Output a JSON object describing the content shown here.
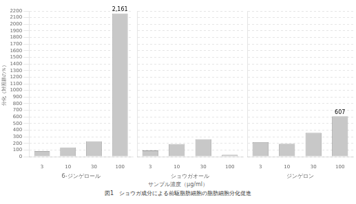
{
  "chart_data": [
    {
      "type": "bar",
      "xlabel": "6-ジンゲロール",
      "ylabel": "分化（対照群の％）",
      "categories": [
        "3",
        "10",
        "30",
        "100"
      ],
      "values": [
        80,
        138,
        232,
        2161
      ],
      "color": "#c8c8c8",
      "annotation": "2,161",
      "ylim": [
        0,
        2200
      ],
      "yticks": [
        0,
        100,
        200,
        300,
        400,
        500,
        600,
        700,
        800,
        900,
        1000,
        1100,
        1200,
        1300,
        1400,
        1500,
        1600,
        1700,
        1800,
        1900,
        2000,
        2100,
        2200
      ],
      "grid": true
    },
    {
      "type": "bar",
      "xlabel": "ショウガオール",
      "categories": [
        "3",
        "10",
        "30",
        "100"
      ],
      "values": [
        93,
        190,
        262,
        25
      ],
      "color": "#c8c8c8",
      "ylim": [
        0,
        2200
      ],
      "yticks": [
        0,
        100,
        200,
        300,
        400,
        500,
        600,
        700,
        800,
        900,
        1000,
        1100,
        1200,
        1300,
        1400,
        1500,
        1600,
        1700,
        1800,
        1900,
        2000,
        2100,
        2200
      ],
      "grid": true,
      "tick_labels": "x"
    },
    {
      "type": "bar",
      "xlabel": "ジンゲロン",
      "categories": [
        "3",
        "10",
        "30",
        "100"
      ],
      "values": [
        218,
        192,
        357,
        607
      ],
      "color": "#c8c8c8",
      "annotation": "607",
      "ylim": [
        0,
        2200
      ],
      "yticks": [
        0,
        100,
        200,
        300,
        400,
        500,
        600,
        700,
        800,
        900,
        1000,
        1100,
        1200,
        1300,
        1400,
        1500,
        1600,
        1700,
        1800,
        1900,
        2000,
        2100,
        2200
      ],
      "grid": true,
      "tick_labels": "x"
    }
  ],
  "xlabel": "サンプル濃度（μg/ml）",
  "title": "図1　ショウガ成分による前駆脂肪細胞の脂肪細胞分化促進"
}
